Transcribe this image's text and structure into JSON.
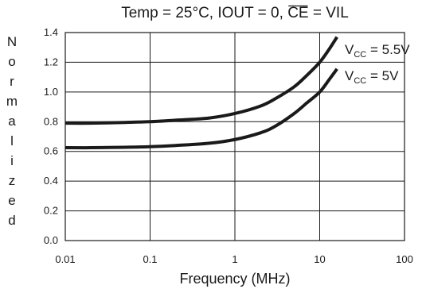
{
  "chart_data": {
    "type": "line",
    "title_prefix": "Temp = 25°C, IOUT = 0, ",
    "title_ce": "CE",
    "title_suffix": " = VIL",
    "xlabel": "Frequency (MHz)",
    "ylabel_letters": [
      "N",
      "o",
      "r",
      "m",
      "a",
      "l",
      "i",
      "z",
      "e",
      "d"
    ],
    "x_scale": "log",
    "xlim": [
      0.01,
      100
    ],
    "ylim": [
      0.0,
      1.4
    ],
    "x_ticks": [
      0.01,
      0.1,
      1,
      10,
      100
    ],
    "x_tick_labels": [
      "0.01",
      "0.1",
      "1",
      "10",
      "100"
    ],
    "y_ticks": [
      0.0,
      0.2,
      0.4,
      0.6,
      0.8,
      1.0,
      1.2,
      1.4
    ],
    "y_tick_labels": [
      "0.0",
      "0.2",
      "0.4",
      "0.6",
      "0.8",
      "1.0",
      "1.2",
      "1.4"
    ],
    "grid": true,
    "series": [
      {
        "label_main": "V",
        "label_sub": "CC",
        "label_value": " = 5.5V",
        "x": [
          0.01,
          0.02,
          0.05,
          0.1,
          0.2,
          0.5,
          1,
          2,
          3,
          5,
          7,
          10,
          13,
          16
        ],
        "y": [
          0.79,
          0.79,
          0.795,
          0.8,
          0.81,
          0.825,
          0.855,
          0.905,
          0.955,
          1.035,
          1.11,
          1.2,
          1.29,
          1.37
        ]
      },
      {
        "label_main": "V",
        "label_sub": "CC",
        "label_value": " = 5V",
        "x": [
          0.01,
          0.02,
          0.05,
          0.1,
          0.2,
          0.5,
          1,
          2,
          3,
          5,
          7,
          10,
          13,
          16
        ],
        "y": [
          0.625,
          0.625,
          0.628,
          0.632,
          0.64,
          0.655,
          0.68,
          0.725,
          0.77,
          0.855,
          0.925,
          1.0,
          1.085,
          1.155
        ]
      }
    ]
  }
}
